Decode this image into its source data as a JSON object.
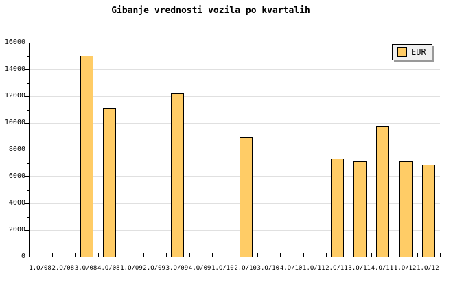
{
  "title": "Gibanje vrednosti vozila po kvartalih",
  "legend": {
    "label": "EUR",
    "swatch_color": "#ffcc66",
    "position": "top-right"
  },
  "colors": {
    "background": "#ffffff",
    "bar_fill": "#ffcc66",
    "bar_border": "#000000",
    "gridline": "#e0e0e0",
    "axis": "#000000",
    "legend_background": "#f0f0f0",
    "legend_shadow": "#999999",
    "text": "#000000"
  },
  "chart_data": {
    "type": "bar",
    "title": "Gibanje vrednosti vozila po kvartalih",
    "series_name": "EUR",
    "categories": [
      "1.Q/08",
      "2.Q/08",
      "3.Q/08",
      "4.Q/08",
      "1.Q/09",
      "2.Q/09",
      "3.Q/09",
      "4.Q/09",
      "1.Q/10",
      "2.Q/10",
      "3.Q/10",
      "4.Q/10",
      "1.Q/11",
      "2.Q/11",
      "3.Q/11",
      "4.Q/11",
      "1.Q/12",
      "1.Q/12"
    ],
    "values": [
      null,
      null,
      15050,
      11100,
      null,
      null,
      12200,
      null,
      null,
      8900,
      null,
      null,
      null,
      7350,
      7150,
      9750,
      7150,
      6850
    ],
    "xlabel": "",
    "ylabel": "",
    "ylim": [
      0,
      16000
    ],
    "y_tick_step": 2000,
    "y_minor_tick_step": 1000,
    "y_tick_labels": [
      "0",
      "2000",
      "4000",
      "6000",
      "8000",
      "10000",
      "12000",
      "14000",
      "16000"
    ],
    "grid": "horizontal-major",
    "legend_position": "top-right"
  }
}
